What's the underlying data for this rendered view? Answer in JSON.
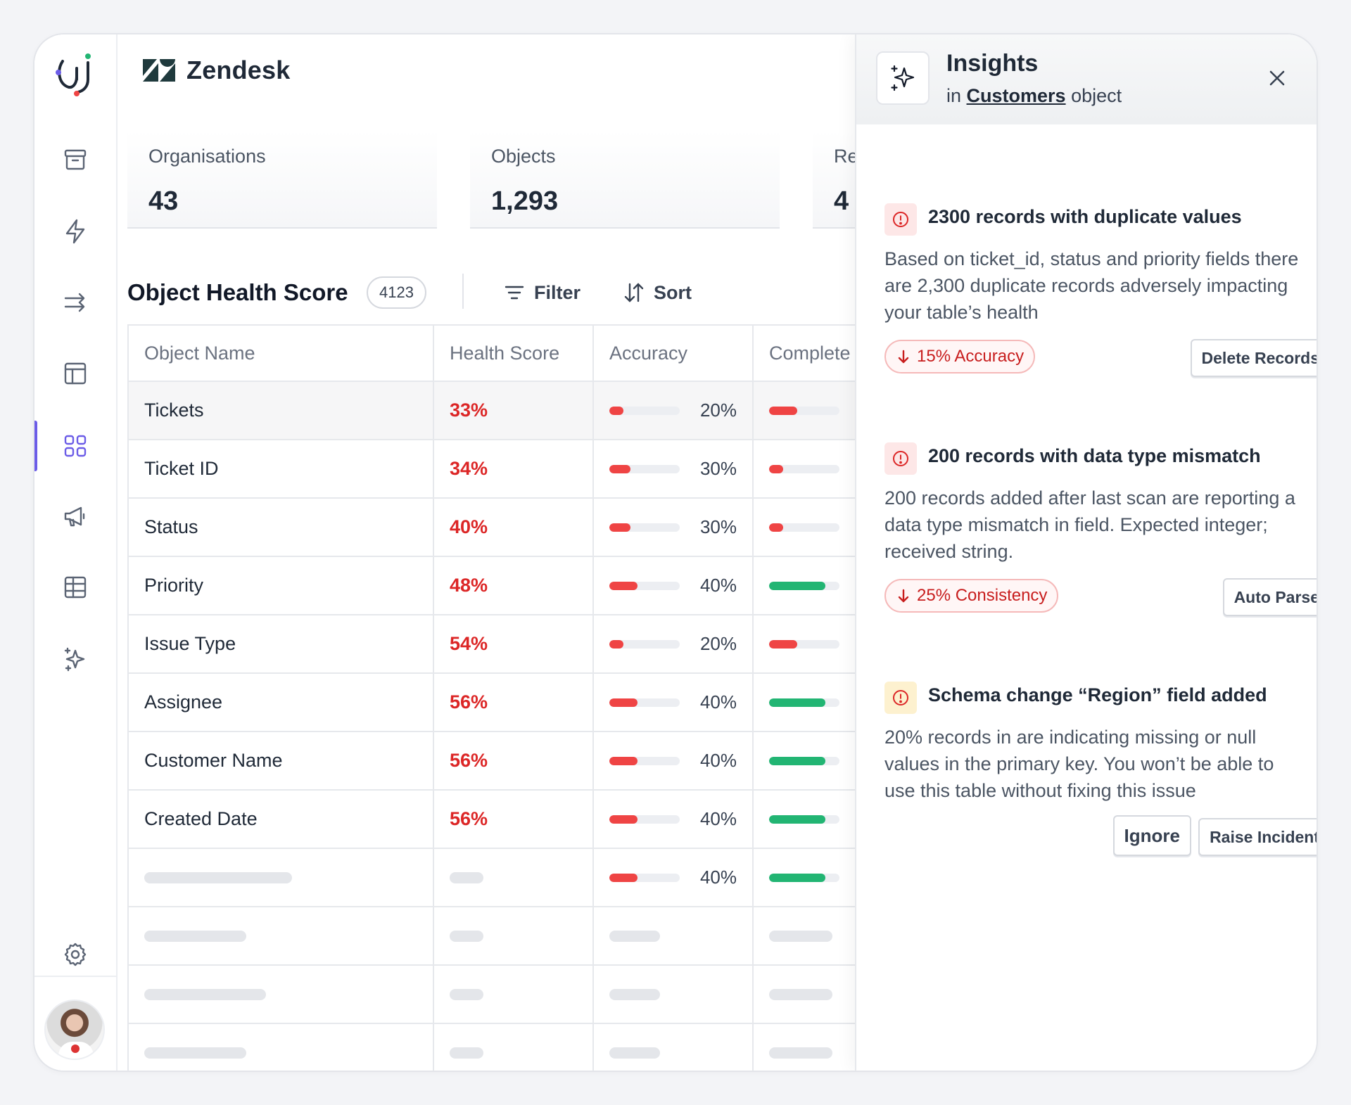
{
  "brand": {
    "name": "Zendesk"
  },
  "stats": [
    {
      "label": "Organisations",
      "value": "43"
    },
    {
      "label": "Objects",
      "value": "1,293"
    },
    {
      "label": "Re",
      "value": "4"
    }
  ],
  "section": {
    "title": "Object Health Score",
    "count": "4123",
    "filter_label": "Filter",
    "sort_label": "Sort"
  },
  "table": {
    "headers": [
      "Object Name",
      "Health Score",
      "Accuracy",
      "Complete"
    ],
    "rows": [
      {
        "name": "Tickets",
        "score": "33%",
        "accuracy": "20%",
        "accuracy_fill": 0.2,
        "complete_fill": 0.4,
        "complete_color": "red"
      },
      {
        "name": "Ticket ID",
        "score": "34%",
        "accuracy": "30%",
        "accuracy_fill": 0.3,
        "complete_fill": 0.2,
        "complete_color": "red"
      },
      {
        "name": "Status",
        "score": "40%",
        "accuracy": "30%",
        "accuracy_fill": 0.3,
        "complete_fill": 0.2,
        "complete_color": "red"
      },
      {
        "name": "Priority",
        "score": "48%",
        "accuracy": "40%",
        "accuracy_fill": 0.4,
        "complete_fill": 0.8,
        "complete_color": "green"
      },
      {
        "name": "Issue Type",
        "score": "54%",
        "accuracy": "20%",
        "accuracy_fill": 0.2,
        "complete_fill": 0.4,
        "complete_color": "red"
      },
      {
        "name": "Assignee",
        "score": "56%",
        "accuracy": "40%",
        "accuracy_fill": 0.4,
        "complete_fill": 0.8,
        "complete_color": "green"
      },
      {
        "name": "Customer Name",
        "score": "56%",
        "accuracy": "40%",
        "accuracy_fill": 0.4,
        "complete_fill": 0.8,
        "complete_color": "green"
      },
      {
        "name": "Created Date",
        "score": "56%",
        "accuracy": "40%",
        "accuracy_fill": 0.4,
        "complete_fill": 0.8,
        "complete_color": "green"
      },
      {
        "name": "",
        "score": "",
        "accuracy": "40%",
        "accuracy_fill": 0.4,
        "complete_fill": 0.8,
        "complete_color": "green"
      }
    ]
  },
  "insights_panel": {
    "title": "Insights",
    "sub_prefix": "in",
    "sub_link": "Customers",
    "sub_suffix": "object",
    "items": [
      {
        "severity": "error",
        "title": "2300 records with duplicate values",
        "body": "Based on ticket_id, status and priority fields there are 2,300 duplicate records adversely impacting your table’s health",
        "pill": "15% Accuracy",
        "actions": [
          "Delete Records"
        ]
      },
      {
        "severity": "error",
        "title": "200 records with data type mismatch",
        "body": "200 records added after last scan are reporting a data type mismatch in field. Expected integer; received string.",
        "pill": "25% Consistency",
        "actions": [
          "Auto Parse"
        ]
      },
      {
        "severity": "warning",
        "title": "Schema change “Region” field added",
        "body": "20% records in are indicating missing or null values in the primary key. You won’t be able to use this table without fixing this issue",
        "pill": "",
        "actions": [
          "Ignore",
          "Raise Incident"
        ]
      }
    ]
  },
  "colors": {
    "accent": "#6b5ce7",
    "danger": "#dc2626",
    "success": "#22b573"
  }
}
